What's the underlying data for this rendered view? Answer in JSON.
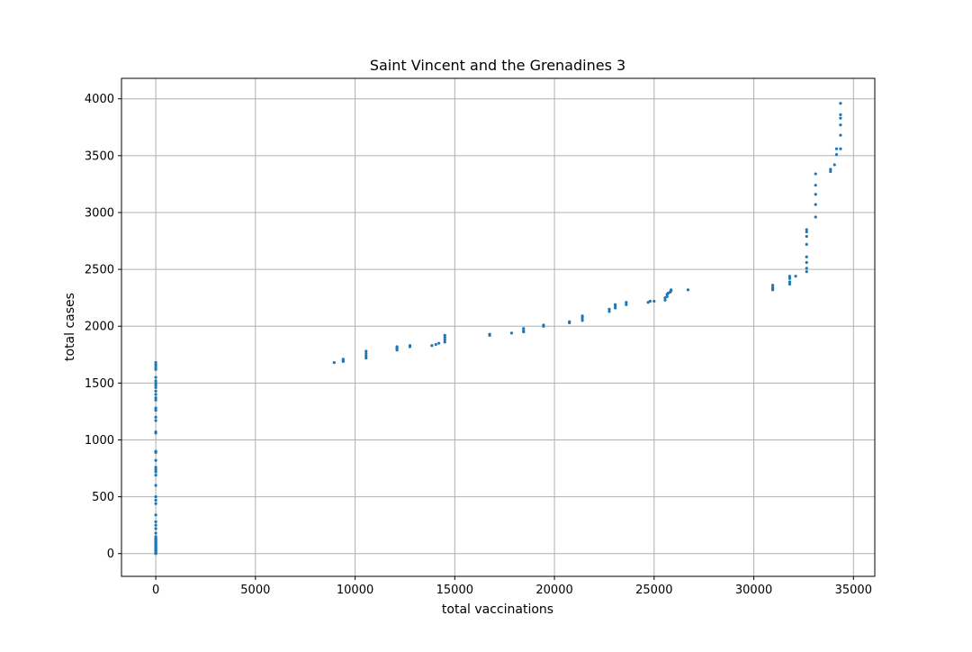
{
  "chart_data": {
    "type": "scatter",
    "title": "Saint Vincent and the Grenadines 3",
    "xlabel": "total vaccinations",
    "ylabel": "total cases",
    "xlim": [
      -1720,
      36070
    ],
    "ylim": [
      -200,
      4180
    ],
    "xticks": [
      0,
      5000,
      10000,
      15000,
      20000,
      25000,
      30000,
      35000
    ],
    "yticks": [
      0,
      500,
      1000,
      1500,
      2000,
      2500,
      3000,
      3500,
      4000
    ],
    "grid": true,
    "marker_color": "#1f77b4",
    "points": [
      [
        0,
        0
      ],
      [
        0,
        5
      ],
      [
        0,
        10
      ],
      [
        0,
        15
      ],
      [
        0,
        20
      ],
      [
        0,
        25
      ],
      [
        0,
        30
      ],
      [
        0,
        35
      ],
      [
        0,
        40
      ],
      [
        0,
        45
      ],
      [
        0,
        50
      ],
      [
        0,
        55
      ],
      [
        0,
        60
      ],
      [
        0,
        65
      ],
      [
        0,
        70
      ],
      [
        0,
        75
      ],
      [
        0,
        80
      ],
      [
        0,
        85
      ],
      [
        0,
        90
      ],
      [
        0,
        95
      ],
      [
        0,
        100
      ],
      [
        0,
        105
      ],
      [
        0,
        110
      ],
      [
        0,
        115
      ],
      [
        0,
        120
      ],
      [
        0,
        125
      ],
      [
        0,
        130
      ],
      [
        0,
        140
      ],
      [
        0,
        150
      ],
      [
        0,
        180
      ],
      [
        0,
        220
      ],
      [
        0,
        250
      ],
      [
        0,
        280
      ],
      [
        0,
        340
      ],
      [
        0,
        440
      ],
      [
        0,
        470
      ],
      [
        0,
        500
      ],
      [
        0,
        600
      ],
      [
        0,
        690
      ],
      [
        0,
        720
      ],
      [
        0,
        740
      ],
      [
        0,
        760
      ],
      [
        0,
        820
      ],
      [
        0,
        890
      ],
      [
        0,
        900
      ],
      [
        0,
        1060
      ],
      [
        0,
        1070
      ],
      [
        0,
        1170
      ],
      [
        0,
        1200
      ],
      [
        0,
        1260
      ],
      [
        0,
        1280
      ],
      [
        0,
        1350
      ],
      [
        0,
        1370
      ],
      [
        0,
        1400
      ],
      [
        0,
        1430
      ],
      [
        0,
        1460
      ],
      [
        0,
        1480
      ],
      [
        0,
        1500
      ],
      [
        0,
        1520
      ],
      [
        0,
        1550
      ],
      [
        0,
        1620
      ],
      [
        0,
        1640
      ],
      [
        0,
        1660
      ],
      [
        0,
        1680
      ],
      [
        8950,
        1680
      ],
      [
        9400,
        1690
      ],
      [
        9400,
        1700
      ],
      [
        9400,
        1710
      ],
      [
        10550,
        1720
      ],
      [
        10550,
        1740
      ],
      [
        10550,
        1760
      ],
      [
        10550,
        1780
      ],
      [
        12100,
        1790
      ],
      [
        12100,
        1800
      ],
      [
        12100,
        1810
      ],
      [
        12100,
        1820
      ],
      [
        12750,
        1820
      ],
      [
        12750,
        1830
      ],
      [
        13850,
        1830
      ],
      [
        14050,
        1840
      ],
      [
        14200,
        1850
      ],
      [
        14500,
        1860
      ],
      [
        14500,
        1880
      ],
      [
        14500,
        1900
      ],
      [
        14500,
        1920
      ],
      [
        16750,
        1920
      ],
      [
        16750,
        1930
      ],
      [
        17850,
        1940
      ],
      [
        18450,
        1950
      ],
      [
        18450,
        1960
      ],
      [
        18450,
        1980
      ],
      [
        19450,
        2000
      ],
      [
        19450,
        2010
      ],
      [
        20750,
        2030
      ],
      [
        20750,
        2040
      ],
      [
        21400,
        2050
      ],
      [
        21400,
        2070
      ],
      [
        21400,
        2090
      ],
      [
        22750,
        2130
      ],
      [
        22750,
        2150
      ],
      [
        23050,
        2160
      ],
      [
        23050,
        2180
      ],
      [
        23050,
        2190
      ],
      [
        23600,
        2190
      ],
      [
        23600,
        2210
      ],
      [
        24700,
        2210
      ],
      [
        24800,
        2220
      ],
      [
        25000,
        2220
      ],
      [
        25550,
        2230
      ],
      [
        25550,
        2250
      ],
      [
        25650,
        2260
      ],
      [
        25650,
        2280
      ],
      [
        25700,
        2290
      ],
      [
        25800,
        2300
      ],
      [
        25850,
        2310
      ],
      [
        25850,
        2320
      ],
      [
        26700,
        2320
      ],
      [
        30950,
        2320
      ],
      [
        30950,
        2330
      ],
      [
        30950,
        2340
      ],
      [
        30950,
        2360
      ],
      [
        31800,
        2370
      ],
      [
        31800,
        2390
      ],
      [
        31800,
        2420
      ],
      [
        31800,
        2440
      ],
      [
        32100,
        2440
      ],
      [
        32650,
        2480
      ],
      [
        32650,
        2510
      ],
      [
        32650,
        2560
      ],
      [
        32650,
        2610
      ],
      [
        32650,
        2720
      ],
      [
        32650,
        2790
      ],
      [
        32650,
        2830
      ],
      [
        32650,
        2850
      ],
      [
        33100,
        2960
      ],
      [
        33100,
        3070
      ],
      [
        33100,
        3160
      ],
      [
        33100,
        3240
      ],
      [
        33100,
        3340
      ],
      [
        33850,
        3360
      ],
      [
        33850,
        3380
      ],
      [
        34050,
        3420
      ],
      [
        34150,
        3510
      ],
      [
        34150,
        3560
      ],
      [
        34350,
        3560
      ],
      [
        34350,
        3680
      ],
      [
        34350,
        3770
      ],
      [
        34350,
        3830
      ],
      [
        34350,
        3860
      ],
      [
        34350,
        3960
      ]
    ]
  }
}
